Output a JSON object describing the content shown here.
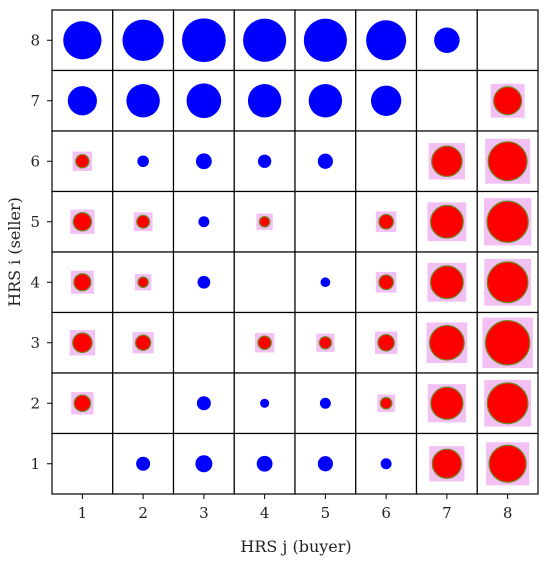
{
  "chart_data": {
    "type": "scatter",
    "subtype": "bubble-matrix",
    "title": "",
    "xlabel": "HRS j (buyer)",
    "ylabel": "HRS i (seller)",
    "x_categories": [
      "1",
      "2",
      "3",
      "4",
      "5",
      "6",
      "7",
      "8"
    ],
    "y_categories": [
      "1",
      "2",
      "3",
      "4",
      "5",
      "6",
      "7",
      "8"
    ],
    "grid": true,
    "legend": "none",
    "diagonal": "empty",
    "colors": {
      "blue": "#0000ff",
      "red": "#ff0000",
      "red_outline": "#6b8e23",
      "red_halo": "#f0b0f0"
    },
    "size_scale_max": 1.0,
    "cells": [
      {
        "seller": 8,
        "buyer": 1,
        "color": "blue",
        "size": 0.63
      },
      {
        "seller": 8,
        "buyer": 2,
        "color": "blue",
        "size": 0.68
      },
      {
        "seller": 8,
        "buyer": 3,
        "color": "blue",
        "size": 0.72
      },
      {
        "seller": 8,
        "buyer": 4,
        "color": "blue",
        "size": 0.71
      },
      {
        "seller": 8,
        "buyer": 5,
        "color": "blue",
        "size": 0.71
      },
      {
        "seller": 8,
        "buyer": 6,
        "color": "blue",
        "size": 0.66
      },
      {
        "seller": 8,
        "buyer": 7,
        "color": "blue",
        "size": 0.42
      },
      {
        "seller": 7,
        "buyer": 1,
        "color": "blue",
        "size": 0.48
      },
      {
        "seller": 7,
        "buyer": 2,
        "color": "blue",
        "size": 0.55
      },
      {
        "seller": 7,
        "buyer": 3,
        "color": "blue",
        "size": 0.57
      },
      {
        "seller": 7,
        "buyer": 4,
        "color": "blue",
        "size": 0.55
      },
      {
        "seller": 7,
        "buyer": 5,
        "color": "blue",
        "size": 0.55
      },
      {
        "seller": 7,
        "buyer": 6,
        "color": "blue",
        "size": 0.5
      },
      {
        "seller": 7,
        "buyer": 8,
        "color": "red",
        "size": 0.46
      },
      {
        "seller": 6,
        "buyer": 1,
        "color": "red",
        "size": 0.22
      },
      {
        "seller": 6,
        "buyer": 2,
        "color": "blue",
        "size": 0.19
      },
      {
        "seller": 6,
        "buyer": 3,
        "color": "blue",
        "size": 0.26
      },
      {
        "seller": 6,
        "buyer": 4,
        "color": "blue",
        "size": 0.22
      },
      {
        "seller": 6,
        "buyer": 5,
        "color": "blue",
        "size": 0.25
      },
      {
        "seller": 6,
        "buyer": 7,
        "color": "red",
        "size": 0.5
      },
      {
        "seller": 6,
        "buyer": 8,
        "color": "red",
        "size": 0.64
      },
      {
        "seller": 5,
        "buyer": 1,
        "color": "red",
        "size": 0.3
      },
      {
        "seller": 5,
        "buyer": 2,
        "color": "red",
        "size": 0.21
      },
      {
        "seller": 5,
        "buyer": 3,
        "color": "blue",
        "size": 0.18
      },
      {
        "seller": 5,
        "buyer": 4,
        "color": "red",
        "size": 0.17
      },
      {
        "seller": 5,
        "buyer": 6,
        "color": "red",
        "size": 0.24
      },
      {
        "seller": 5,
        "buyer": 7,
        "color": "red",
        "size": 0.54
      },
      {
        "seller": 5,
        "buyer": 8,
        "color": "red",
        "size": 0.68
      },
      {
        "seller": 4,
        "buyer": 1,
        "color": "red",
        "size": 0.28
      },
      {
        "seller": 4,
        "buyer": 2,
        "color": "red",
        "size": 0.17
      },
      {
        "seller": 4,
        "buyer": 3,
        "color": "blue",
        "size": 0.21
      },
      {
        "seller": 4,
        "buyer": 5,
        "color": "blue",
        "size": 0.16
      },
      {
        "seller": 4,
        "buyer": 6,
        "color": "red",
        "size": 0.24
      },
      {
        "seller": 4,
        "buyer": 7,
        "color": "red",
        "size": 0.54
      },
      {
        "seller": 4,
        "buyer": 8,
        "color": "red",
        "size": 0.67
      },
      {
        "seller": 3,
        "buyer": 1,
        "color": "red",
        "size": 0.32
      },
      {
        "seller": 3,
        "buyer": 2,
        "color": "red",
        "size": 0.25
      },
      {
        "seller": 3,
        "buyer": 4,
        "color": "red",
        "size": 0.22
      },
      {
        "seller": 3,
        "buyer": 5,
        "color": "red",
        "size": 0.2
      },
      {
        "seller": 3,
        "buyer": 6,
        "color": "red",
        "size": 0.27
      },
      {
        "seller": 3,
        "buyer": 7,
        "color": "red",
        "size": 0.57
      },
      {
        "seller": 3,
        "buyer": 8,
        "color": "red",
        "size": 0.73
      },
      {
        "seller": 2,
        "buyer": 1,
        "color": "red",
        "size": 0.27
      },
      {
        "seller": 2,
        "buyer": 3,
        "color": "blue",
        "size": 0.23
      },
      {
        "seller": 2,
        "buyer": 4,
        "color": "blue",
        "size": 0.15
      },
      {
        "seller": 2,
        "buyer": 5,
        "color": "blue",
        "size": 0.18
      },
      {
        "seller": 2,
        "buyer": 6,
        "color": "red",
        "size": 0.19
      },
      {
        "seller": 2,
        "buyer": 7,
        "color": "red",
        "size": 0.53
      },
      {
        "seller": 2,
        "buyer": 8,
        "color": "red",
        "size": 0.67
      },
      {
        "seller": 1,
        "buyer": 2,
        "color": "blue",
        "size": 0.23
      },
      {
        "seller": 1,
        "buyer": 3,
        "color": "blue",
        "size": 0.28
      },
      {
        "seller": 1,
        "buyer": 4,
        "color": "blue",
        "size": 0.26
      },
      {
        "seller": 1,
        "buyer": 5,
        "color": "blue",
        "size": 0.25
      },
      {
        "seller": 1,
        "buyer": 6,
        "color": "blue",
        "size": 0.18
      },
      {
        "seller": 1,
        "buyer": 7,
        "color": "red",
        "size": 0.48
      },
      {
        "seller": 1,
        "buyer": 8,
        "color": "red",
        "size": 0.61
      }
    ]
  }
}
